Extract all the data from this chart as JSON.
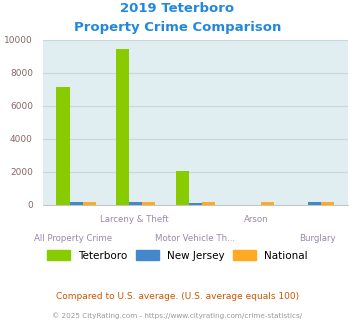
{
  "title_line1": "2019 Teterboro",
  "title_line2": "Property Crime Comparison",
  "title_color": "#2288dd",
  "categories": [
    "All Property Crime",
    "Larceny & Theft",
    "Motor Vehicle Th...",
    "Arson",
    "Burglary"
  ],
  "x_labels_top": [
    "",
    "Larceny & Theft",
    "",
    "Arson",
    ""
  ],
  "x_labels_bot": [
    "All Property Crime",
    "",
    "Motor Vehicle Th...",
    "",
    "Burglary"
  ],
  "teterboro": [
    7100,
    9450,
    2050,
    0,
    0
  ],
  "new_jersey": [
    130,
    130,
    100,
    0,
    150
  ],
  "national": [
    180,
    160,
    130,
    160,
    170
  ],
  "bar_width": 0.22,
  "ylim": [
    0,
    10000
  ],
  "yticks": [
    0,
    2000,
    4000,
    6000,
    8000,
    10000
  ],
  "color_teterboro": "#88cc00",
  "color_nj": "#4488cc",
  "color_national": "#ffaa22",
  "bg_color": "#e0eef2",
  "grid_color": "#c8d8dc",
  "label_color_top": "#9988aa",
  "label_color_bot": "#9988aa",
  "legend_teterboro": "Teterboro",
  "legend_nj": "New Jersey",
  "legend_national": "National",
  "footer_text1": "Compared to U.S. average. (U.S. average equals 100)",
  "footer_text2": "© 2025 CityRating.com - https://www.cityrating.com/crime-statistics/",
  "footer_color1": "#cc5500",
  "footer_color2": "#999999",
  "ytick_color": "#886666"
}
